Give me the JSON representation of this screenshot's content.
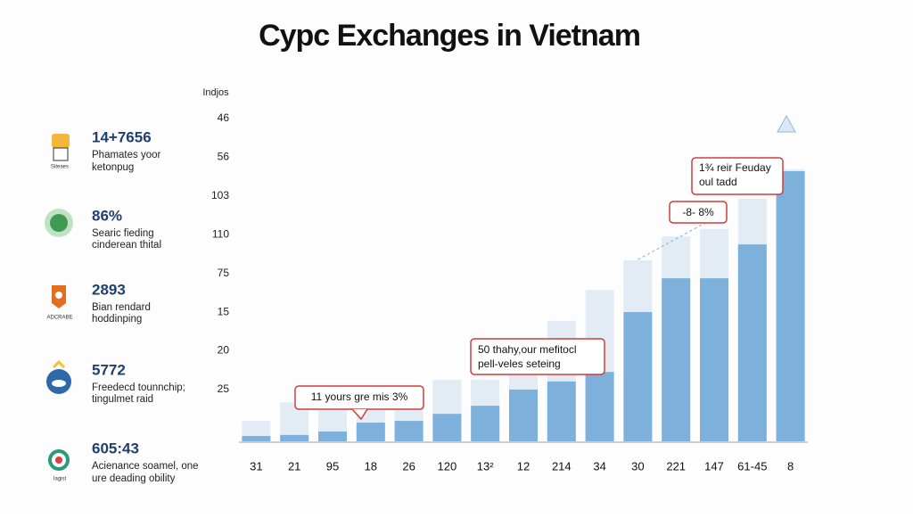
{
  "chart_data": {
    "type": "bar",
    "title": "Cypc Exchanges in Vietnam",
    "y_label": "Indjos",
    "y_labels": [
      "46",
      "56",
      "103",
      "110",
      "75",
      "15",
      "20",
      "25"
    ],
    "categories": [
      "31",
      "21",
      "95",
      "18",
      "26",
      "120",
      "13²",
      "12",
      "214",
      "34",
      "30",
      "221",
      "147",
      "61-45",
      "8"
    ],
    "series": [
      {
        "color": "#e3ebf4",
        "values": [
          5.8,
          11.1,
          8.9,
          8.9,
          12.9,
          17.5,
          17.5,
          19.2,
          34.2,
          43,
          51.4,
          58.2,
          60.3,
          68.9,
          77.2
        ]
      },
      {
        "color": "#7eb0dc",
        "values": [
          1.5,
          1.8,
          2.8,
          5.3,
          5.8,
          7.8,
          10.1,
          14.7,
          17,
          19.7,
          36.7,
          46.3,
          46.3,
          55.9,
          76.7
        ]
      }
    ],
    "ylim": [
      0,
      100
    ],
    "annotations": [
      {
        "lines": [
          "1¾ reir Feuday",
          "oul tadd"
        ]
      },
      {
        "lines": [
          "-8- 8%"
        ]
      },
      {
        "lines": [
          "50 thahy,our mefitocl",
          "pell-veles seteing"
        ]
      },
      {
        "lines": [
          "11 yours gre mis 3%"
        ]
      }
    ]
  },
  "sidebar": [
    {
      "number": "14+7656",
      "lines": [
        "Phamates yoor",
        "ketonpug"
      ],
      "icon_label": "Siteaes"
    },
    {
      "number": "86%",
      "lines": [
        "Searic fieding",
        "cinderean thital"
      ]
    },
    {
      "number": "2893",
      "lines": [
        "Bian rendard",
        "hoddinping"
      ],
      "icon_label": "ADCRABE"
    },
    {
      "number": "5772",
      "lines": [
        "Freedecd tounnchip;",
        "tingulmet raid"
      ]
    },
    {
      "number": "605:43",
      "lines": [
        "Acienance soamel, one",
        "ure deading obility"
      ],
      "icon_label": "Iagist"
    }
  ]
}
